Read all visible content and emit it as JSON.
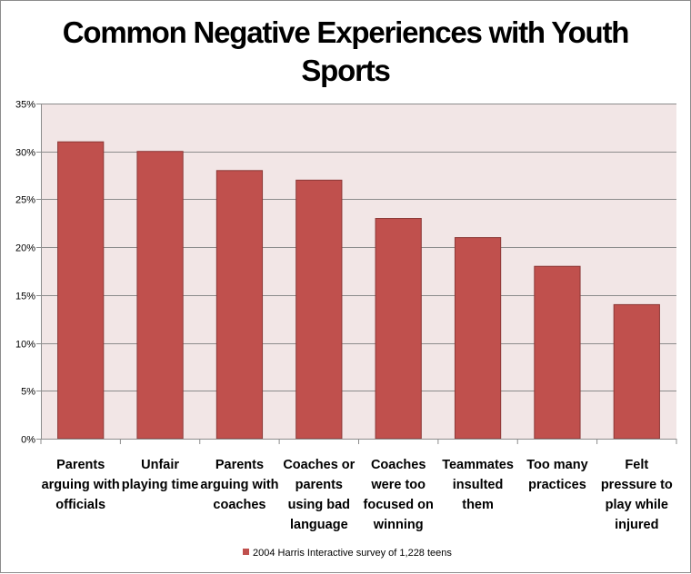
{
  "chart_data": {
    "type": "bar",
    "title_lines": [
      "Common Negative Experiences with Youth",
      "Sports"
    ],
    "categories": [
      [
        "Parents",
        "arguing with",
        "officials"
      ],
      [
        "Unfair",
        "playing time"
      ],
      [
        "Parents",
        "arguing with",
        "coaches"
      ],
      [
        "Coaches or",
        "parents",
        "using bad",
        "language"
      ],
      [
        "Coaches",
        "were too",
        "focused on",
        "winning"
      ],
      [
        "Teammates",
        "insulted",
        "them"
      ],
      [
        "Too many",
        "practices"
      ],
      [
        "Felt",
        "pressure to",
        "play while",
        "injured"
      ]
    ],
    "series": [
      {
        "name": "2004 Harris Interactive survey of 1,228 teens",
        "values": [
          31,
          30,
          28,
          27,
          23,
          21,
          18,
          14
        ],
        "color": "#c0504d"
      }
    ],
    "yticks": [
      "0%",
      "5%",
      "10%",
      "15%",
      "20%",
      "25%",
      "30%",
      "35%"
    ],
    "ylim": [
      0,
      35
    ],
    "ytick_step": 5,
    "grid": true,
    "legend_position": "bottom",
    "plot_background": "#f2e6e6",
    "gridline_color": "#8c8c8c"
  }
}
